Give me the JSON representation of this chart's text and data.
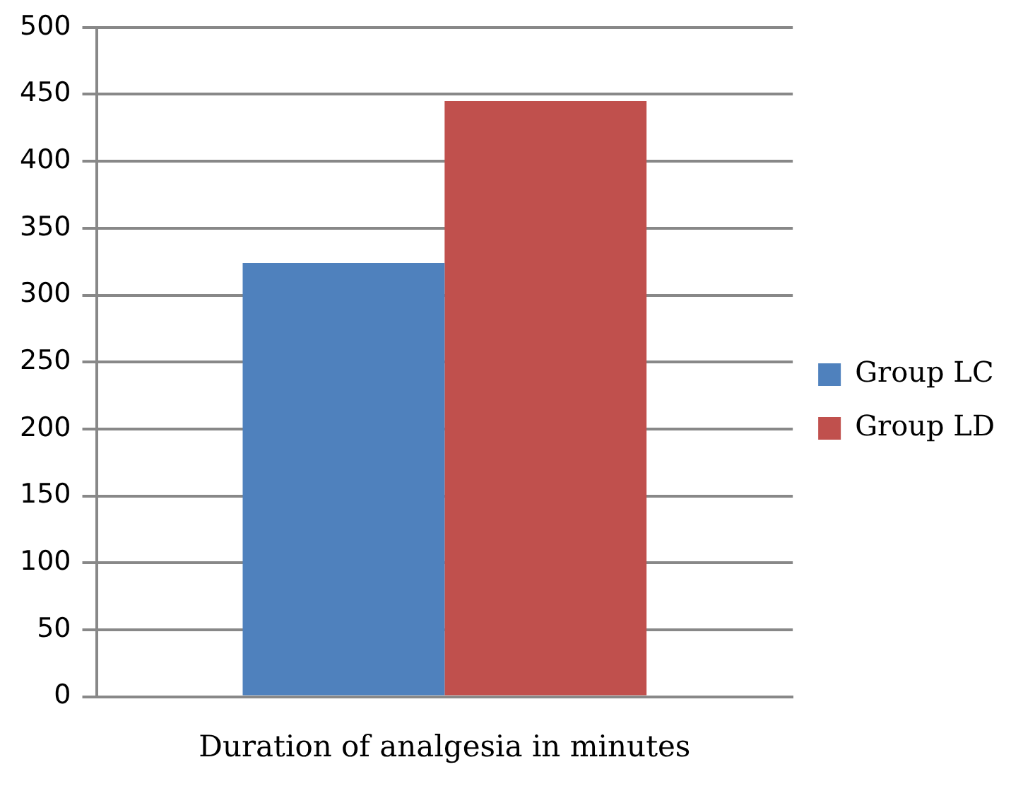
{
  "chart_data": {
    "type": "bar",
    "categories": [
      "Duration of analgesia in minutes"
    ],
    "series": [
      {
        "name": "Group LC",
        "color": "#4f81bd",
        "values": [
          324
        ]
      },
      {
        "name": "Group LD",
        "color": "#c0504d",
        "values": [
          445
        ]
      }
    ],
    "ylim": [
      0,
      500
    ],
    "yticks": [
      0,
      50,
      100,
      150,
      200,
      250,
      300,
      350,
      400,
      450,
      500
    ],
    "grid": "y",
    "legend": "right"
  }
}
